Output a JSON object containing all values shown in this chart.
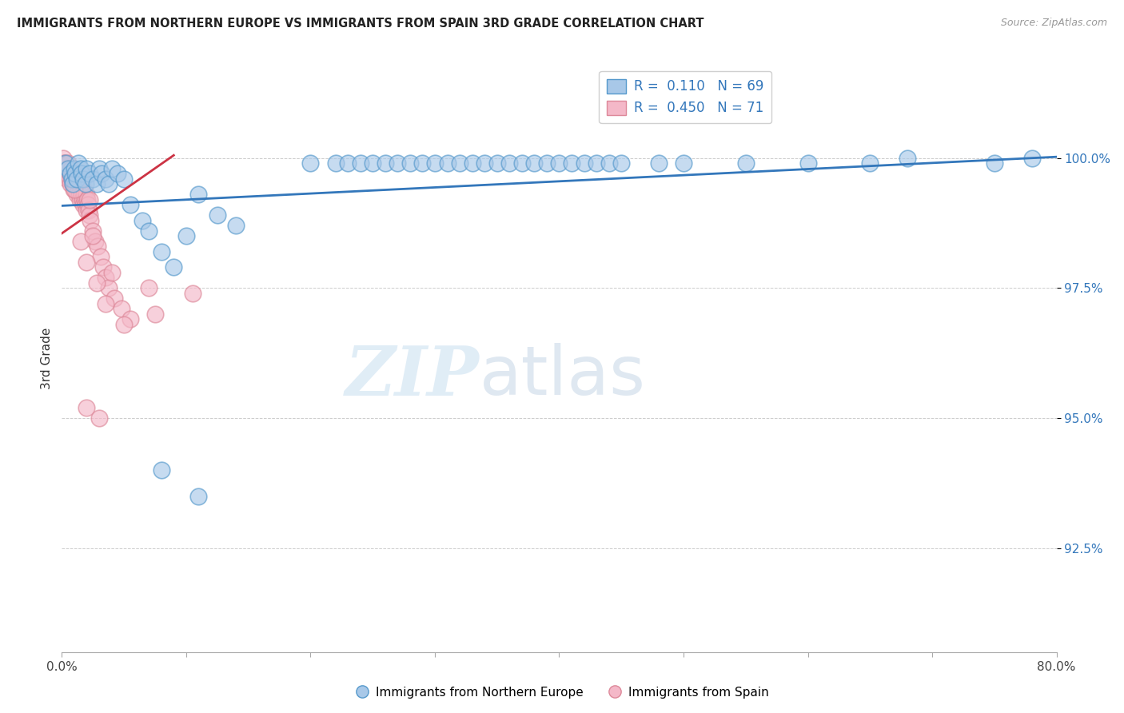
{
  "title": "IMMIGRANTS FROM NORTHERN EUROPE VS IMMIGRANTS FROM SPAIN 3RD GRADE CORRELATION CHART",
  "source": "Source: ZipAtlas.com",
  "ylabel": "3rd Grade",
  "yticks": [
    92.5,
    95.0,
    97.5,
    100.0
  ],
  "ytick_labels": [
    "92.5%",
    "95.0%",
    "97.5%",
    "100.0%"
  ],
  "xlim": [
    0.0,
    80.0
  ],
  "ylim": [
    90.5,
    101.8
  ],
  "legend_R1": "0.110",
  "legend_N1": "69",
  "legend_R2": "0.450",
  "legend_N2": "71",
  "legend_label1": "Immigrants from Northern Europe",
  "legend_label2": "Immigrants from Spain",
  "blue_color": "#a8c8e8",
  "blue_edge_color": "#5599cc",
  "pink_color": "#f4b8c8",
  "pink_edge_color": "#dd8899",
  "blue_line_color": "#3377bb",
  "pink_line_color": "#cc3344",
  "watermark_zip": "ZIP",
  "watermark_atlas": "atlas",
  "blue_x": [
    0.3,
    0.5,
    0.7,
    0.8,
    0.9,
    1.0,
    1.1,
    1.2,
    1.3,
    1.5,
    1.6,
    1.7,
    1.9,
    2.0,
    2.2,
    2.5,
    2.8,
    3.0,
    3.2,
    3.5,
    3.8,
    4.0,
    4.5,
    5.0,
    5.5,
    6.5,
    7.0,
    8.0,
    9.0,
    10.0,
    11.0,
    12.5,
    14.0,
    20.0,
    22.0,
    23.0,
    24.0,
    25.0,
    26.0,
    27.0,
    28.0,
    29.0,
    30.0,
    31.0,
    32.0,
    33.0,
    34.0,
    35.0,
    36.0,
    37.0,
    38.0,
    39.0,
    40.0,
    41.0,
    42.0,
    43.0,
    44.0,
    45.0,
    48.0,
    50.0,
    55.0,
    60.0,
    65.0,
    68.0,
    75.0,
    78.0,
    8.0,
    11.0
  ],
  "blue_y": [
    99.9,
    99.8,
    99.7,
    99.6,
    99.5,
    99.8,
    99.7,
    99.6,
    99.9,
    99.8,
    99.7,
    99.6,
    99.5,
    99.8,
    99.7,
    99.6,
    99.5,
    99.8,
    99.7,
    99.6,
    99.5,
    99.8,
    99.7,
    99.6,
    99.1,
    98.8,
    98.6,
    98.2,
    97.9,
    98.5,
    99.3,
    98.9,
    98.7,
    99.9,
    99.9,
    99.9,
    99.9,
    99.9,
    99.9,
    99.9,
    99.9,
    99.9,
    99.9,
    99.9,
    99.9,
    99.9,
    99.9,
    99.9,
    99.9,
    99.9,
    99.9,
    99.9,
    99.9,
    99.9,
    99.9,
    99.9,
    99.9,
    99.9,
    99.9,
    99.9,
    99.9,
    99.9,
    99.9,
    100.0,
    99.9,
    100.0,
    94.0,
    93.5
  ],
  "pink_x": [
    0.1,
    0.15,
    0.2,
    0.25,
    0.3,
    0.35,
    0.4,
    0.45,
    0.5,
    0.55,
    0.6,
    0.65,
    0.7,
    0.75,
    0.8,
    0.85,
    0.9,
    0.95,
    1.0,
    1.05,
    1.1,
    1.15,
    1.2,
    1.25,
    1.3,
    1.35,
    1.4,
    1.45,
    1.5,
    1.55,
    1.6,
    1.65,
    1.7,
    1.75,
    1.8,
    1.85,
    1.9,
    1.95,
    2.0,
    2.05,
    2.1,
    2.15,
    2.2,
    2.25,
    2.3,
    2.5,
    2.7,
    2.9,
    3.1,
    3.3,
    3.5,
    3.8,
    4.2,
    4.8,
    5.5,
    7.0,
    1.5,
    2.0,
    2.8,
    3.5,
    5.0,
    7.5,
    10.5,
    1.0,
    2.5,
    4.0,
    3.0,
    2.0
  ],
  "pink_y": [
    100.0,
    99.9,
    99.8,
    99.9,
    99.7,
    99.8,
    99.6,
    99.7,
    99.9,
    99.8,
    99.7,
    99.6,
    99.5,
    99.8,
    99.7,
    99.6,
    99.5,
    99.4,
    99.7,
    99.6,
    99.5,
    99.4,
    99.3,
    99.6,
    99.5,
    99.4,
    99.3,
    99.2,
    99.5,
    99.4,
    99.3,
    99.2,
    99.1,
    99.4,
    99.3,
    99.2,
    99.1,
    99.0,
    99.3,
    99.2,
    99.1,
    99.0,
    98.9,
    99.2,
    98.8,
    98.6,
    98.4,
    98.3,
    98.1,
    97.9,
    97.7,
    97.5,
    97.3,
    97.1,
    96.9,
    97.5,
    98.4,
    98.0,
    97.6,
    97.2,
    96.8,
    97.0,
    97.4,
    99.4,
    98.5,
    97.8,
    95.0,
    95.2
  ]
}
